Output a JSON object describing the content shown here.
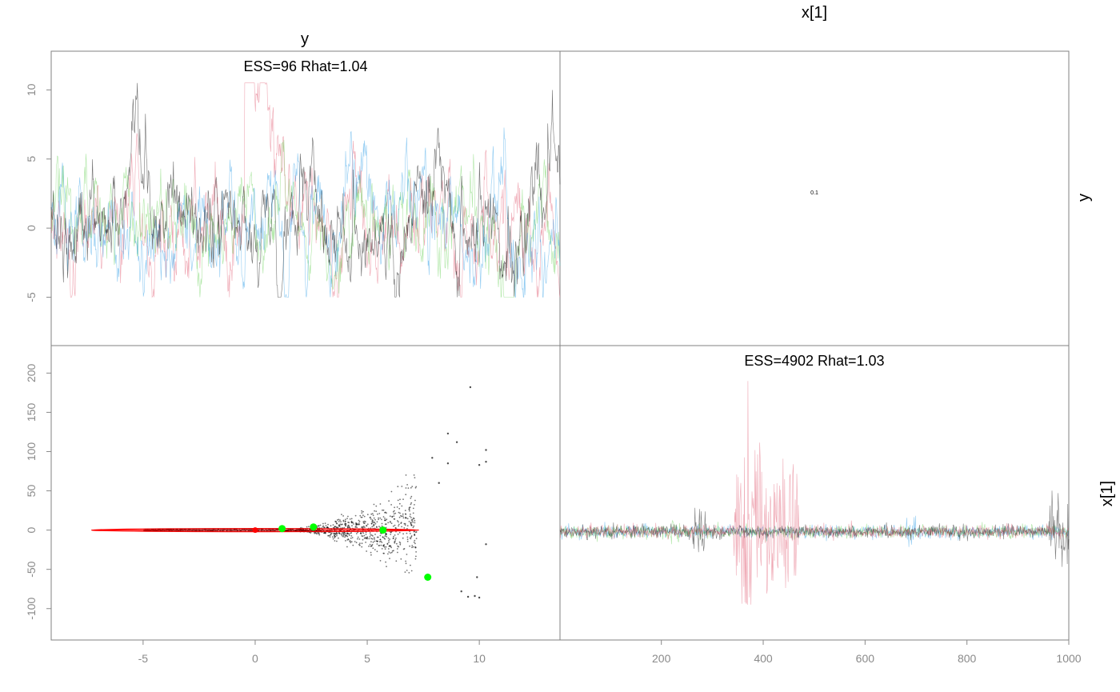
{
  "figure": {
    "var_labels_top": [
      "y",
      "x[1]"
    ],
    "var_labels_right": [
      "y",
      "x[1]"
    ],
    "colors": {
      "chains": [
        "#000000",
        "#df536b",
        "#61d04f",
        "#2297e6"
      ],
      "frame": "#808080",
      "tick": "#8a8a8a",
      "ellipse": "#ff0000",
      "highlight": "#00ff00"
    }
  },
  "chart_data": [
    {
      "id": "trace-y",
      "type": "line",
      "title": "ESS=96 Rhat=1.04",
      "x": [
        1,
        1000
      ],
      "xlim": [
        1,
        1000
      ],
      "ylim": [
        -8.5,
        12.8
      ],
      "yticks": [
        -5,
        0,
        5,
        10
      ],
      "series_count": 4,
      "grid": false
    },
    {
      "id": "correlation-y-x1",
      "type": "table",
      "value": "0.1"
    },
    {
      "id": "scatter-x1-vs-y",
      "type": "scatter",
      "xlim": [
        -9.1,
        13.6
      ],
      "ylim": [
        -140,
        235
      ],
      "xticks": [
        -5,
        0,
        5,
        10
      ],
      "yticks": [
        -100,
        -50,
        0,
        50,
        100,
        150,
        200
      ],
      "highlight_points": [
        {
          "x": 1.2,
          "y": 2
        },
        {
          "x": 2.6,
          "y": 4
        },
        {
          "x": 5.7,
          "y": 0
        },
        {
          "x": 7.7,
          "y": -60
        }
      ],
      "mean_point": {
        "x": 0,
        "y": 0
      },
      "outlier_points": [
        {
          "x": 9.6,
          "y": 182
        },
        {
          "x": 8.6,
          "y": 123
        },
        {
          "x": 9.0,
          "y": 112
        },
        {
          "x": 10.3,
          "y": 102
        },
        {
          "x": 7.9,
          "y": 92
        },
        {
          "x": 10.3,
          "y": 87
        },
        {
          "x": 8.6,
          "y": 85
        },
        {
          "x": 10.0,
          "y": 83
        },
        {
          "x": 8.2,
          "y": 60
        },
        {
          "x": 9.9,
          "y": -60
        },
        {
          "x": 9.2,
          "y": -78
        },
        {
          "x": 9.5,
          "y": -85
        },
        {
          "x": 9.8,
          "y": -84
        },
        {
          "x": 10.0,
          "y": -86
        },
        {
          "x": 10.3,
          "y": -18
        }
      ],
      "grid": false
    },
    {
      "id": "trace-x1",
      "type": "line",
      "title": "ESS=4902 Rhat=1.03",
      "xlim": [
        1,
        1000
      ],
      "ylim": [
        -140,
        235
      ],
      "xticks": [
        200,
        400,
        600,
        800,
        1000
      ],
      "series_count": 4,
      "grid": false
    }
  ]
}
